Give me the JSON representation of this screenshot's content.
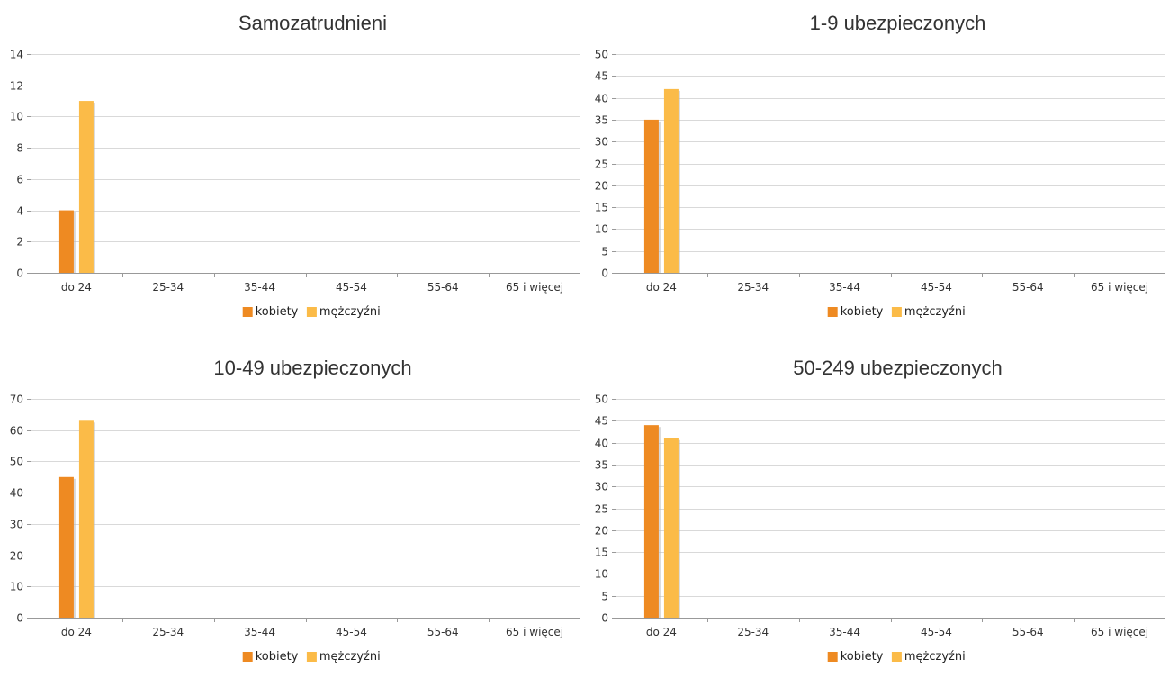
{
  "chart_data": [
    {
      "type": "bar",
      "title": "Samozatrudnieni",
      "categories": [
        "do 24",
        "25-34",
        "35-44",
        "45-54",
        "55-64",
        "65 i więcej"
      ],
      "series": [
        {
          "name": "kobiety",
          "values": [
            4,
            0,
            0,
            0,
            0,
            0
          ]
        },
        {
          "name": "mężczyźni",
          "values": [
            11,
            0,
            0,
            0,
            0,
            0
          ]
        }
      ],
      "ylim": [
        0,
        14
      ],
      "yticks": [
        0,
        2,
        4,
        6,
        8,
        10,
        12,
        14
      ],
      "grid": true,
      "legend": "bottom"
    },
    {
      "type": "bar",
      "title": "1-9 ubezpieczonych",
      "categories": [
        "do 24",
        "25-34",
        "35-44",
        "45-54",
        "55-64",
        "65 i więcej"
      ],
      "series": [
        {
          "name": "kobiety",
          "values": [
            35,
            0,
            0,
            0,
            0,
            0
          ]
        },
        {
          "name": "mężczyźni",
          "values": [
            42,
            0,
            0,
            0,
            0,
            0
          ]
        }
      ],
      "ylim": [
        0,
        50
      ],
      "yticks": [
        0,
        5,
        10,
        15,
        20,
        25,
        30,
        35,
        40,
        45,
        50
      ],
      "grid": true,
      "legend": "bottom"
    },
    {
      "type": "bar",
      "title": "10-49 ubezpieczonych",
      "categories": [
        "do 24",
        "25-34",
        "35-44",
        "45-54",
        "55-64",
        "65 i więcej"
      ],
      "series": [
        {
          "name": "kobiety",
          "values": [
            45,
            0,
            0,
            0,
            0,
            0
          ]
        },
        {
          "name": "mężczyźni",
          "values": [
            63,
            0,
            0,
            0,
            0,
            0
          ]
        }
      ],
      "ylim": [
        0,
        70
      ],
      "yticks": [
        0,
        10,
        20,
        30,
        40,
        50,
        60,
        70
      ],
      "grid": true,
      "legend": "bottom"
    },
    {
      "type": "bar",
      "title": "50-249 ubezpieczonych",
      "categories": [
        "do 24",
        "25-34",
        "35-44",
        "45-54",
        "55-64",
        "65 i więcej"
      ],
      "series": [
        {
          "name": "kobiety",
          "values": [
            44,
            0,
            0,
            0,
            0,
            0
          ]
        },
        {
          "name": "mężczyźni",
          "values": [
            41,
            0,
            0,
            0,
            0,
            0
          ]
        }
      ],
      "ylim": [
        0,
        50
      ],
      "yticks": [
        0,
        5,
        10,
        15,
        20,
        25,
        30,
        35,
        40,
        45,
        50
      ],
      "grid": true,
      "legend": "bottom"
    }
  ],
  "colors": {
    "kobiety": "#ee8a22",
    "mężczyźni": "#fbbb48",
    "grid": "#d9d9d9",
    "axis": "#999999",
    "shadow": "#b9b9b9"
  }
}
